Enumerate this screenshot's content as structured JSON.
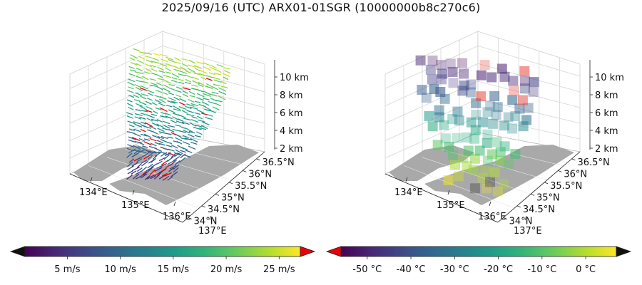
{
  "title": "2025/09/16 (UTC) ARX01-01SGR (10000000b8c270c6)",
  "colors": {
    "land": "#a9a9a9",
    "grid": "#d6d6d6",
    "pane": "#ffffff",
    "over_wind": "#e8000b",
    "under_wind": "#111111",
    "over_temp": "#111111",
    "under_temp": "#e8000b"
  },
  "chart_data": [
    {
      "type": "3d-quiver",
      "name": "wind",
      "x_ticks": [
        "134°E",
        "135°E",
        "136°E",
        "137°E"
      ],
      "y_ticks": [
        "34°N",
        "34.5°N",
        "35°N",
        "35.5°N",
        "36°N",
        "36.5°N"
      ],
      "z_ticks": [
        "2 km",
        "4 km",
        "6 km",
        "8 km",
        "10 km"
      ],
      "colorbar": {
        "colormap": "viridis",
        "range": [
          1,
          27
        ],
        "ticks": [
          "5 m/s",
          "10 m/s",
          "15 m/s",
          "20 m/s",
          "25 m/s"
        ],
        "extend": "both"
      }
    },
    {
      "type": "3d-voxel",
      "name": "temperature",
      "x_ticks": [
        "134°E",
        "135°E",
        "136°E",
        "137°E"
      ],
      "y_ticks": [
        "34°N",
        "34.5°N",
        "35°N",
        "35.5°N",
        "36°N",
        "36.5°N"
      ],
      "z_ticks": [
        "2 km",
        "4 km",
        "6 km",
        "8 km",
        "10 km"
      ],
      "colorbar": {
        "colormap": "viridis",
        "range": [
          -56,
          7
        ],
        "ticks": [
          "-50 °C",
          "-40 °C",
          "-30 °C",
          "-20 °C",
          "-10 °C",
          "0 °C"
        ],
        "extend": "both"
      }
    }
  ]
}
